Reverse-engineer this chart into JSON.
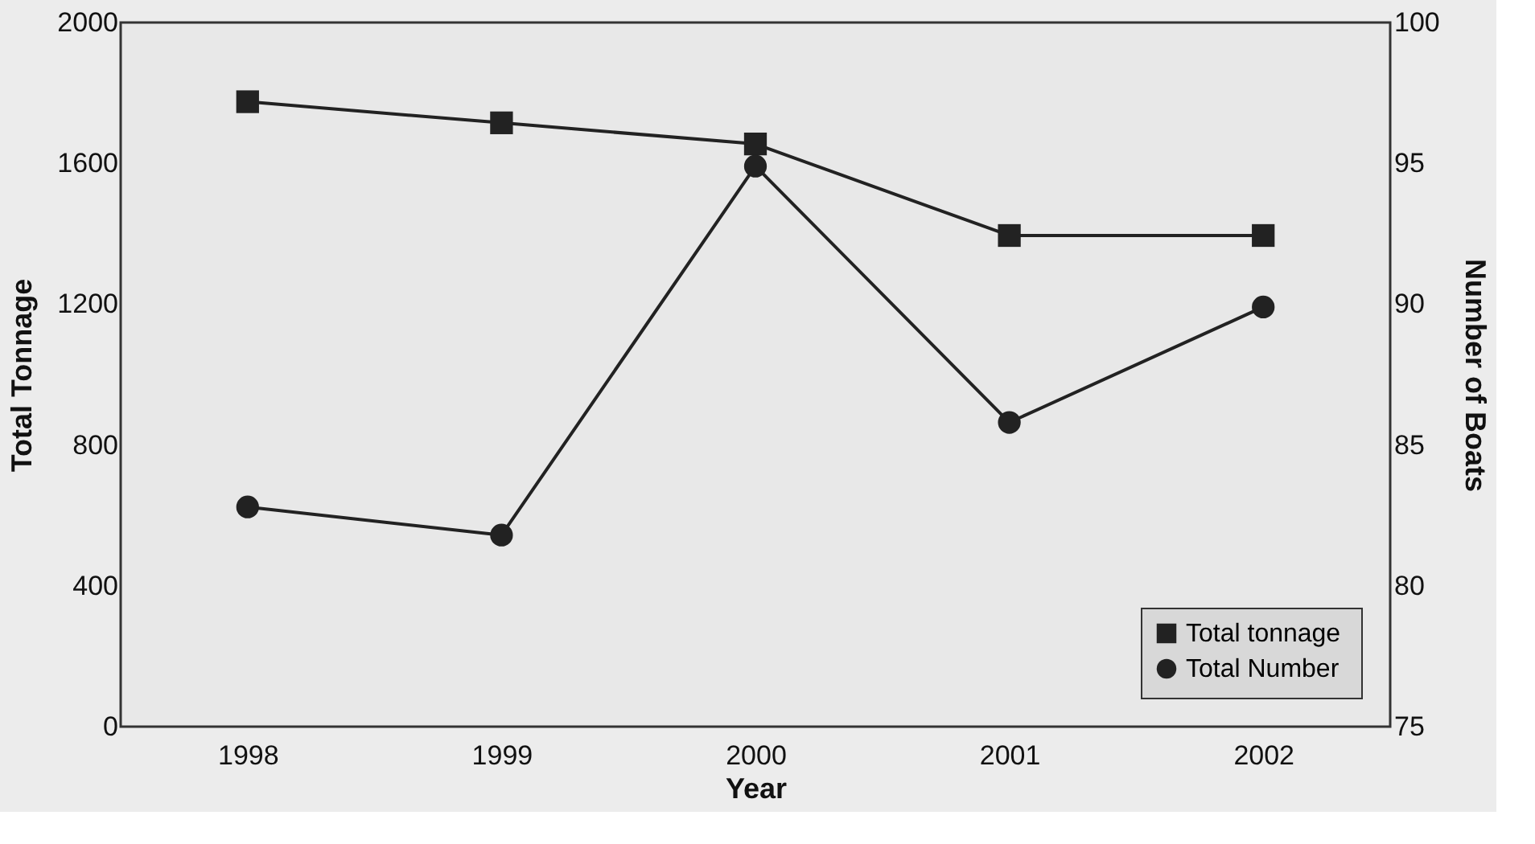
{
  "chart_data": {
    "type": "line",
    "xlabel": "Year",
    "ylabel": "Total Tonnage",
    "y2label": "Number of Boats",
    "categories": [
      "1998",
      "1999",
      "2000",
      "2001",
      "2002"
    ],
    "series": [
      {
        "name": "Total  tonnage",
        "color": "#222222",
        "marker": "square",
        "values": [
          1775,
          1715,
          1655,
          1395,
          1395
        ]
      },
      {
        "name": "Total Number",
        "color": "#222222",
        "marker": "circle",
        "axis": "y2",
        "values": [
          82.8,
          81.8,
          94.9,
          85.8,
          89.9
        ]
      }
    ],
    "ylim": [
      0,
      2000
    ],
    "yticks": [
      0,
      400,
      800,
      1200,
      1600,
      2000
    ],
    "y2lim": [
      75,
      100
    ],
    "y2ticks": [
      75,
      80,
      85,
      90,
      95,
      100
    ],
    "grid": false,
    "legend": "bottom right",
    "line_style": "solid"
  }
}
